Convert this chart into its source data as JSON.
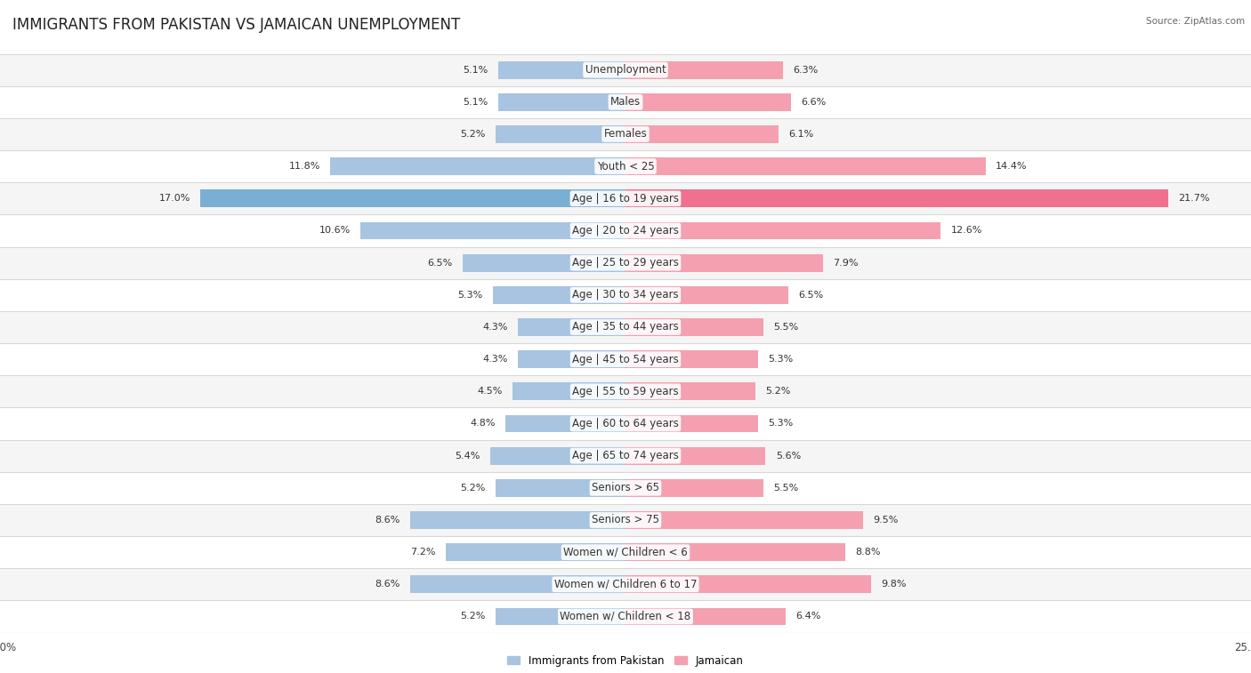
{
  "title": "IMMIGRANTS FROM PAKISTAN VS JAMAICAN UNEMPLOYMENT",
  "source": "Source: ZipAtlas.com",
  "categories": [
    "Unemployment",
    "Males",
    "Females",
    "Youth < 25",
    "Age | 16 to 19 years",
    "Age | 20 to 24 years",
    "Age | 25 to 29 years",
    "Age | 30 to 34 years",
    "Age | 35 to 44 years",
    "Age | 45 to 54 years",
    "Age | 55 to 59 years",
    "Age | 60 to 64 years",
    "Age | 65 to 74 years",
    "Seniors > 65",
    "Seniors > 75",
    "Women w/ Children < 6",
    "Women w/ Children 6 to 17",
    "Women w/ Children < 18"
  ],
  "left_values": [
    5.1,
    5.1,
    5.2,
    11.8,
    17.0,
    10.6,
    6.5,
    5.3,
    4.3,
    4.3,
    4.5,
    4.8,
    5.4,
    5.2,
    8.6,
    7.2,
    8.6,
    5.2
  ],
  "right_values": [
    6.3,
    6.6,
    6.1,
    14.4,
    21.7,
    12.6,
    7.9,
    6.5,
    5.5,
    5.3,
    5.2,
    5.3,
    5.6,
    5.5,
    9.5,
    8.8,
    9.8,
    6.4
  ],
  "left_color": "#a8c4e0",
  "right_color": "#f4a0b0",
  "highlight_left_color": "#7aafd4",
  "highlight_right_color": "#f07090",
  "left_label": "Immigrants from Pakistan",
  "right_label": "Jamaican",
  "bar_height": 0.55,
  "xlim": 25.0,
  "bg_row_light": "#f5f5f5",
  "bg_row_white": "#ffffff",
  "title_fontsize": 12,
  "label_fontsize": 8.5,
  "value_fontsize": 8,
  "axis_label_fontsize": 8.5,
  "highlight_rows": [
    4
  ]
}
